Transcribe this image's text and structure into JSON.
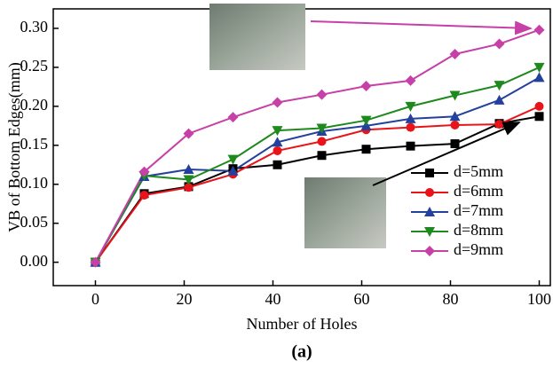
{
  "chart_data": {
    "type": "line",
    "title": "(a)",
    "x_label": "Number of Holes",
    "y_label": "VB of Bottom Edges(mm)",
    "x": [
      0,
      11,
      21,
      31,
      41,
      51,
      61,
      71,
      81,
      91,
      100
    ],
    "series": [
      {
        "name": "d=5mm",
        "color": "#000000",
        "marker": "square",
        "values": [
          0,
          0.088,
          0.097,
          0.12,
          0.125,
          0.137,
          0.145,
          0.149,
          0.152,
          0.178,
          0.187
        ]
      },
      {
        "name": "d=6mm",
        "color": "#e8141a",
        "marker": "circle",
        "values": [
          0,
          0.086,
          0.096,
          0.113,
          0.143,
          0.155,
          0.17,
          0.173,
          0.176,
          0.177,
          0.2
        ]
      },
      {
        "name": "d=7mm",
        "color": "#22409c",
        "marker": "triangle-up",
        "values": [
          0,
          0.11,
          0.119,
          0.117,
          0.154,
          0.168,
          0.175,
          0.184,
          0.187,
          0.208,
          0.237
        ]
      },
      {
        "name": "d=8mm",
        "color": "#1e8a1e",
        "marker": "triangle-down",
        "values": [
          0,
          0.111,
          0.106,
          0.132,
          0.169,
          0.172,
          0.182,
          0.2,
          0.214,
          0.227,
          0.25
        ]
      },
      {
        "name": "d=9mm",
        "color": "#c640a8",
        "marker": "diamond",
        "values": [
          0,
          0.116,
          0.165,
          0.186,
          0.205,
          0.215,
          0.226,
          0.233,
          0.267,
          0.28,
          0.298
        ]
      }
    ],
    "xlim": [
      -9.5,
      102.5
    ],
    "xticks": [
      0,
      20,
      40,
      60,
      80,
      100
    ],
    "ylim": [
      -0.03,
      0.325
    ],
    "yticks": [
      {
        "value": 0,
        "label": "0.00"
      },
      {
        "value": 0.05,
        "label": "0.05"
      },
      {
        "value": 0.1,
        "label": "0.10"
      },
      {
        "value": 0.15,
        "label": "0.15"
      },
      {
        "value": 0.2,
        "label": "0.20"
      },
      {
        "value": 0.25,
        "label": "0.25"
      },
      {
        "value": 0.3,
        "label": "0.30"
      }
    ],
    "legend": "lower right"
  }
}
